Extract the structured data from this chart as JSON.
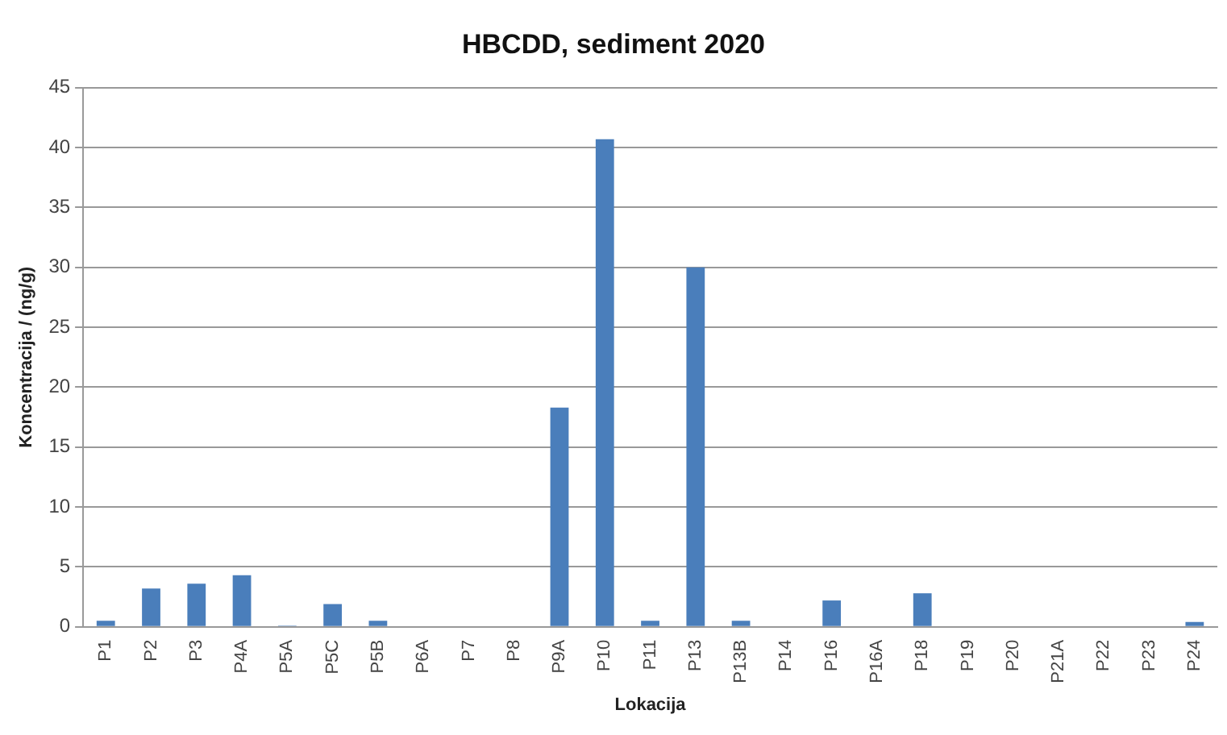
{
  "chart_data": {
    "type": "bar",
    "title": "HBCDD, sediment 2020",
    "xlabel": "Lokacija",
    "ylabel": "Koncentracija / (ng/g)",
    "categories": [
      "P1",
      "P2",
      "P3",
      "P4A",
      "P5A",
      "P5C",
      "P5B",
      "P6A",
      "P7",
      "P8",
      "P9A",
      "P10",
      "P11",
      "P13",
      "P13B",
      "P14",
      "P16",
      "P16A",
      "P18",
      "P19",
      "P20",
      "P21A",
      "P22",
      "P23",
      "P24"
    ],
    "values": [
      0.5,
      3.2,
      3.6,
      4.3,
      0.1,
      1.9,
      0.5,
      0,
      0,
      0,
      18.3,
      40.7,
      0.5,
      30,
      0.5,
      0,
      2.2,
      0,
      2.8,
      0,
      0,
      0,
      0,
      0,
      0.4
    ],
    "color": "#4a7ebb",
    "ylim": [
      0,
      45
    ],
    "yticks": [
      0,
      5,
      10,
      15,
      20,
      25,
      30,
      35,
      40,
      45
    ],
    "grid": "y",
    "legend": false
  }
}
